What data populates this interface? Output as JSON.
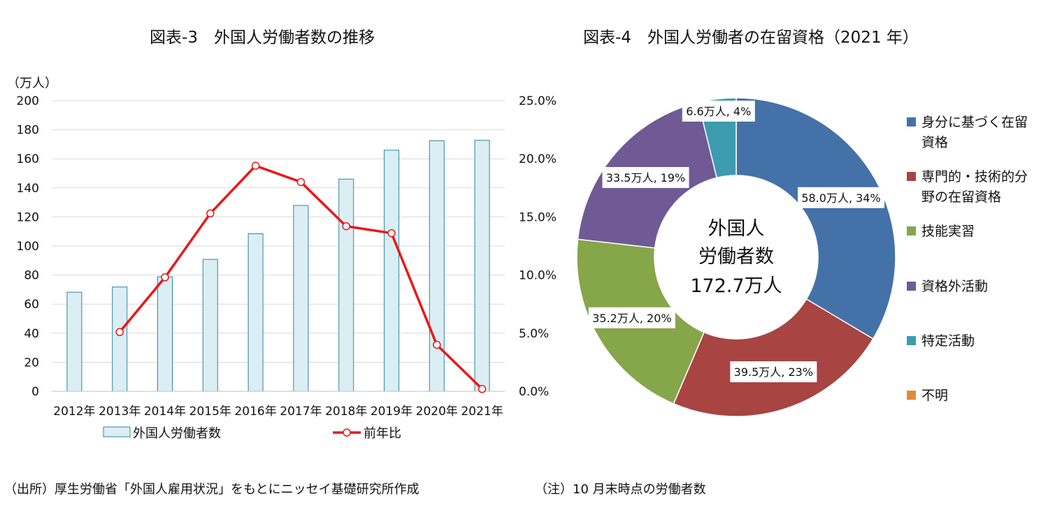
{
  "footer": {
    "source": "（出所）厚生労働省「外国人雇用状況」をもとにニッセイ基礎研究所作成",
    "note": "（注）10 月末時点の労働者数"
  },
  "chart_data": [
    {
      "type": "bar",
      "title": "図表-3　外国人労働者数の推移",
      "ylabel": "（万人）",
      "ylim": [
        0,
        200
      ],
      "yticks": [
        "0",
        "20",
        "40",
        "60",
        "80",
        "100",
        "120",
        "140",
        "160",
        "180",
        "200"
      ],
      "y2lim": [
        0,
        25
      ],
      "y2ticks": [
        "0.0%",
        "5.0%",
        "10.0%",
        "15.0%",
        "20.0%",
        "25.0%"
      ],
      "categories": [
        "2012年",
        "2013年",
        "2014年",
        "2015年",
        "2016年",
        "2017年",
        "2018年",
        "2019年",
        "2020年",
        "2021年"
      ],
      "grid": true,
      "legend_position": "bottom",
      "series": [
        {
          "name": "外国人労働者数",
          "type": "bar",
          "axis": "left",
          "color": "#dbeef4",
          "edge_color": "#31859c",
          "values": [
            68.2,
            71.8,
            78.8,
            90.8,
            108.4,
            127.9,
            146.0,
            165.9,
            172.4,
            172.7
          ]
        },
        {
          "name": "前年比",
          "type": "line",
          "axis": "right",
          "color": "#e81818",
          "values": [
            null,
            5.1,
            9.8,
            15.3,
            19.4,
            18.0,
            14.2,
            13.6,
            4.0,
            0.2
          ]
        }
      ]
    },
    {
      "type": "pie",
      "title": "図表-4　外国人労働者の在留資格（2021 年）",
      "center_label": [
        "外国人",
        "労働者数",
        "172.7万人"
      ],
      "legend_position": "right",
      "slices": [
        {
          "name": "身分に基づく在留資格",
          "legend_lines": [
            "身分に基づく在留",
            "資格"
          ],
          "value": 58.0,
          "label": "58.0万人, 34%",
          "color": "#4472a8"
        },
        {
          "name": "専門的・技術的分野の在留資格",
          "legend_lines": [
            "専門的・技術的分",
            "野の在留資格"
          ],
          "value": 39.5,
          "label": "39.5万人, 23%",
          "color": "#a84442"
        },
        {
          "name": "技能実習",
          "legend_lines": [
            "技能実習"
          ],
          "value": 35.2,
          "label": "35.2万人, 20%",
          "color": "#86a64a"
        },
        {
          "name": "資格外活動",
          "legend_lines": [
            "資格外活動"
          ],
          "value": 33.5,
          "label": "33.5万人, 19%",
          "color": "#6f5a95"
        },
        {
          "name": "特定活動",
          "legend_lines": [
            "特定活動"
          ],
          "value": 6.6,
          "label": "6.6万人, 4%",
          "color": "#3d9bb0"
        },
        {
          "name": "不明",
          "legend_lines": [
            "不明"
          ],
          "value": 0,
          "label": "",
          "color": "#e08a3c"
        }
      ]
    }
  ]
}
